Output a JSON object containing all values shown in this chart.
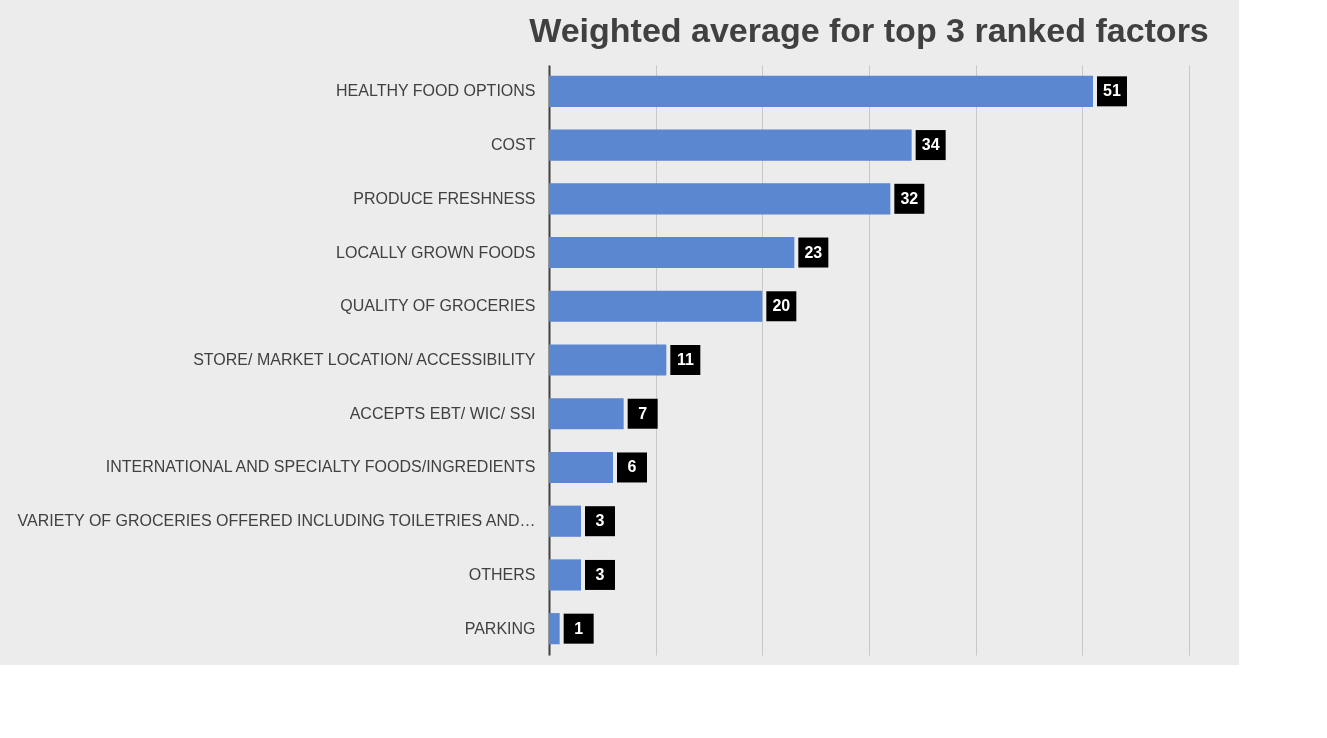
{
  "chart_data": {
    "type": "bar",
    "orientation": "horizontal",
    "title": "Weighted average for top 3 ranked factors",
    "categories": [
      "HEALTHY FOOD OPTIONS",
      "COST",
      "PRODUCE FRESHNESS",
      "LOCALLY GROWN FOODS",
      "QUALITY OF GROCERIES",
      "STORE/ MARKET LOCATION/ ACCESSIBILITY",
      "ACCEPTS EBT/ WIC/ SSI",
      "INTERNATIONAL AND SPECIALTY FOODS/INGREDIENTS",
      "VARIETY OF GROCERIES OFFERED INCLUDING TOILETRIES AND…",
      "OTHERS",
      "PARKING"
    ],
    "values": [
      51,
      34,
      32,
      23,
      20,
      11,
      7,
      6,
      3,
      3,
      1
    ],
    "color": "#5b87d0",
    "data_labels": true,
    "xlim": [
      0,
      60
    ],
    "xticks": [
      {
        "value": 0,
        "label": null
      },
      {
        "value": 10,
        "label": null
      },
      {
        "value": 20,
        "label": null
      },
      {
        "value": 30,
        "label": null
      },
      {
        "value": 40,
        "label": null
      },
      {
        "value": 50,
        "label": null
      },
      {
        "value": 60,
        "label": null
      }
    ],
    "grid": "x",
    "tick_labels": "y"
  }
}
